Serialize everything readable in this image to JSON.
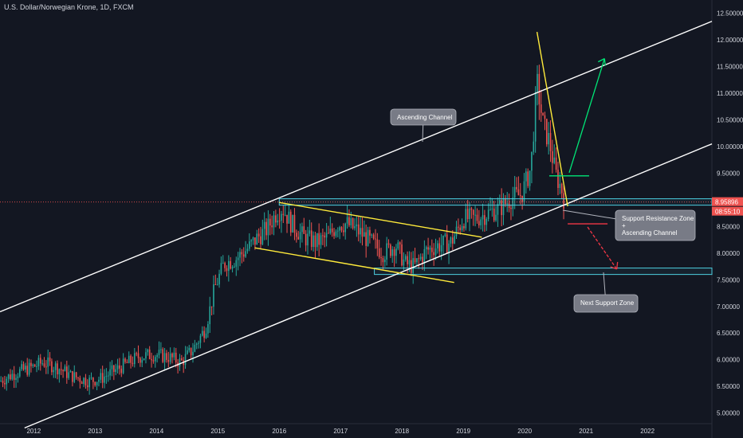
{
  "header": {
    "title": "U.S. Dollar/Norwegian Krone, 1D, FXCM"
  },
  "colors": {
    "background": "#131722",
    "up": "#26a69a",
    "down": "#ef5350",
    "channel": "#ffffff",
    "wedge": "#ffeb3b",
    "zone": "#4dd0e1",
    "green_arrow": "#00e676",
    "red_arrow": "#f23645",
    "text": "#d1d4dc"
  },
  "chart_data": {
    "type": "candlestick",
    "title": "U.S. Dollar/Norwegian Krone, 1D, FXCM",
    "x_tick_labels": [
      "2012",
      "2013",
      "2014",
      "2015",
      "2016",
      "2017",
      "2018",
      "2019",
      "2020",
      "2021",
      "2022"
    ],
    "y_tick_labels": [
      "12.50000",
      "12.00000",
      "11.50000",
      "11.00000",
      "10.50000",
      "10.00000",
      "9.50000",
      "9.00000",
      "8.50000",
      "8.00000",
      "7.50000",
      "7.00000",
      "6.50000",
      "6.00000",
      "5.50000",
      "5.00000"
    ],
    "ylim": [
      4.8,
      12.75
    ],
    "xlim": [
      2011.45,
      2023.05
    ],
    "price_path": [
      [
        2011.45,
        5.6
      ],
      [
        2011.7,
        5.75
      ],
      [
        2011.95,
        5.85
      ],
      [
        2012.15,
        5.95
      ],
      [
        2012.4,
        5.85
      ],
      [
        2012.6,
        5.7
      ],
      [
        2012.9,
        5.6
      ],
      [
        2013.1,
        5.65
      ],
      [
        2013.4,
        5.85
      ],
      [
        2013.7,
        6.05
      ],
      [
        2013.95,
        6.1
      ],
      [
        2014.2,
        6.05
      ],
      [
        2014.4,
        5.95
      ],
      [
        2014.6,
        6.2
      ],
      [
        2014.8,
        6.6
      ],
      [
        2014.95,
        7.35
      ],
      [
        2015.1,
        7.8
      ],
      [
        2015.3,
        7.9
      ],
      [
        2015.5,
        8.1
      ],
      [
        2015.65,
        8.3
      ],
      [
        2015.8,
        8.45
      ],
      [
        2015.95,
        8.75
      ],
      [
        2016.05,
        8.85
      ],
      [
        2016.2,
        8.55
      ],
      [
        2016.4,
        8.3
      ],
      [
        2016.6,
        8.2
      ],
      [
        2016.8,
        8.3
      ],
      [
        2016.95,
        8.55
      ],
      [
        2017.1,
        8.55
      ],
      [
        2017.3,
        8.4
      ],
      [
        2017.5,
        8.2
      ],
      [
        2017.7,
        8.0
      ],
      [
        2017.9,
        8.15
      ],
      [
        2018.05,
        7.8
      ],
      [
        2018.2,
        7.75
      ],
      [
        2018.4,
        8.05
      ],
      [
        2018.6,
        8.15
      ],
      [
        2018.8,
        8.2
      ],
      [
        2019.0,
        8.65
      ],
      [
        2019.2,
        8.65
      ],
      [
        2019.4,
        8.75
      ],
      [
        2019.6,
        8.85
      ],
      [
        2019.8,
        9.05
      ],
      [
        2019.95,
        9.1
      ],
      [
        2020.1,
        9.6
      ],
      [
        2020.2,
        11.2
      ],
      [
        2020.3,
        10.4
      ],
      [
        2020.4,
        10.1
      ],
      [
        2020.5,
        9.5
      ],
      [
        2020.6,
        9.2
      ],
      [
        2020.65,
        8.96
      ]
    ],
    "current_price": "8.95896",
    "countdown": "08:55:10",
    "annotations": {
      "ascending_channel": "Ascending Channel",
      "support_resistance_line1": "Support Resistance Zone",
      "support_resistance_line2": "+",
      "support_resistance_line3": "Ascending Channel",
      "next_support": "Next Support Zone"
    },
    "drawings": {
      "channel_upper": [
        [
          2011.45,
          6.9
        ],
        [
          2023.05,
          12.35
        ]
      ],
      "channel_lower": [
        [
          2011.85,
          4.72
        ],
        [
          2023.05,
          10.05
        ]
      ],
      "wedge_upper": [
        [
          2016.0,
          8.95
        ],
        [
          2019.3,
          8.3
        ]
      ],
      "wedge_lower": [
        [
          2015.6,
          8.1
        ],
        [
          2018.85,
          7.45
        ]
      ],
      "spike_trend": [
        [
          2020.2,
          12.15
        ],
        [
          2020.7,
          8.88
        ]
      ],
      "zone_upper": [
        8.9,
        9.02
      ],
      "zone_lower": [
        7.6,
        7.72
      ],
      "green_target": [
        [
          2020.4,
          9.45
        ],
        [
          2021.3,
          11.65
        ]
      ],
      "red_target": [
        [
          2020.7,
          8.55
        ],
        [
          2021.5,
          7.7
        ]
      ]
    },
    "grid": false,
    "legend": "none"
  }
}
